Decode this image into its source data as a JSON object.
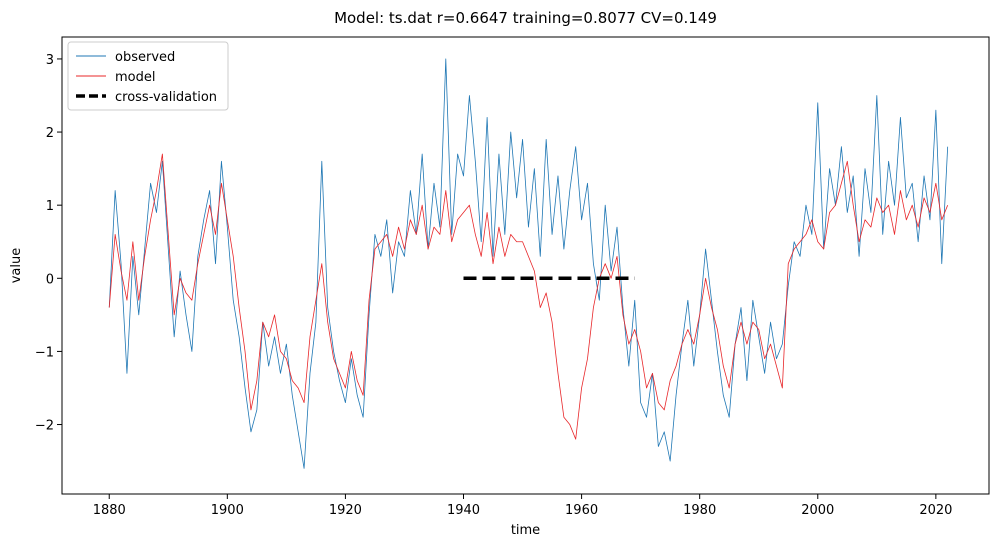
{
  "chart_data": {
    "type": "line",
    "title": "Model: ts.dat  r=0.6647  training=0.8077  CV=0.149",
    "xlabel": "time",
    "ylabel": "value",
    "xlim": [
      1872,
      2029
    ],
    "ylim": [
      -2.95,
      3.3
    ],
    "xticks": [
      1880,
      1900,
      1920,
      1940,
      1960,
      1980,
      2000,
      2020
    ],
    "yticks": [
      -2,
      -1,
      0,
      1,
      2,
      3
    ],
    "ytick_labels": [
      "−2",
      "−1",
      "0",
      "1",
      "2",
      "3"
    ],
    "legend_position": "upper-left",
    "series": [
      {
        "name": "observed",
        "color": "#1f77b4",
        "x": [
          1880,
          1881,
          1882,
          1883,
          1884,
          1885,
          1886,
          1887,
          1888,
          1889,
          1890,
          1891,
          1892,
          1893,
          1894,
          1895,
          1896,
          1897,
          1898,
          1899,
          1900,
          1901,
          1902,
          1903,
          1904,
          1905,
          1906,
          1907,
          1908,
          1909,
          1910,
          1911,
          1912,
          1913,
          1914,
          1915,
          1916,
          1917,
          1918,
          1919,
          1920,
          1921,
          1922,
          1923,
          1924,
          1925,
          1926,
          1927,
          1928,
          1929,
          1930,
          1931,
          1932,
          1933,
          1934,
          1935,
          1936,
          1937,
          1938,
          1939,
          1940,
          1941,
          1942,
          1943,
          1944,
          1945,
          1946,
          1947,
          1948,
          1949,
          1950,
          1951,
          1952,
          1953,
          1954,
          1955,
          1956,
          1957,
          1958,
          1959,
          1960,
          1961,
          1962,
          1963,
          1964,
          1965,
          1966,
          1967,
          1968,
          1969,
          1970,
          1971,
          1972,
          1973,
          1974,
          1975,
          1976,
          1977,
          1978,
          1979,
          1980,
          1981,
          1982,
          1983,
          1984,
          1985,
          1986,
          1987,
          1988,
          1989,
          1990,
          1991,
          1992,
          1993,
          1994,
          1995,
          1996,
          1997,
          1998,
          1999,
          2000,
          2001,
          2002,
          2003,
          2004,
          2005,
          2006,
          2007,
          2008,
          2009,
          2010,
          2011,
          2012,
          2013,
          2014,
          2015,
          2016,
          2017,
          2018,
          2019,
          2020,
          2021,
          2022
        ],
        "values": [
          -0.4,
          1.2,
          0.2,
          -1.3,
          0.3,
          -0.5,
          0.4,
          1.3,
          0.9,
          1.6,
          0.4,
          -0.8,
          0.1,
          -0.5,
          -1.0,
          0.3,
          0.8,
          1.2,
          0.2,
          1.6,
          0.7,
          -0.3,
          -0.8,
          -1.5,
          -2.1,
          -1.8,
          -0.6,
          -1.2,
          -0.8,
          -1.3,
          -0.9,
          -1.6,
          -2.1,
          -2.6,
          -1.3,
          -0.6,
          1.6,
          -0.4,
          -1.0,
          -1.4,
          -1.7,
          -1.1,
          -1.6,
          -1.9,
          -0.5,
          0.6,
          0.3,
          0.8,
          -0.2,
          0.5,
          0.3,
          1.2,
          0.6,
          1.7,
          0.4,
          1.3,
          0.7,
          3.0,
          0.6,
          1.7,
          1.4,
          2.5,
          1.6,
          0.5,
          2.2,
          0.3,
          1.7,
          0.6,
          2.0,
          1.1,
          1.9,
          0.7,
          1.5,
          0.3,
          1.9,
          0.6,
          1.4,
          0.4,
          1.2,
          1.8,
          0.8,
          1.3,
          0.2,
          -0.3,
          1.0,
          0.1,
          0.7,
          -0.4,
          -1.2,
          -0.3,
          -1.7,
          -1.9,
          -1.3,
          -2.3,
          -2.1,
          -2.5,
          -1.6,
          -0.9,
          -0.3,
          -1.2,
          -0.5,
          0.4,
          -0.3,
          -1.0,
          -1.6,
          -1.9,
          -0.9,
          -0.4,
          -1.4,
          -0.3,
          -0.8,
          -1.3,
          -0.6,
          -1.1,
          -0.9,
          -0.1,
          0.5,
          0.3,
          1.0,
          0.6,
          2.4,
          0.4,
          1.5,
          1.0,
          1.8,
          0.9,
          1.4,
          0.3,
          1.5,
          0.9,
          2.5,
          0.6,
          1.6,
          1.0,
          2.2,
          1.1,
          1.3,
          0.5,
          1.4,
          0.8,
          2.3,
          0.2,
          1.8
        ]
      },
      {
        "name": "model",
        "color": "#e8272a",
        "x": [
          1880,
          1881,
          1882,
          1883,
          1884,
          1885,
          1886,
          1887,
          1888,
          1889,
          1890,
          1891,
          1892,
          1893,
          1894,
          1895,
          1896,
          1897,
          1898,
          1899,
          1900,
          1901,
          1902,
          1903,
          1904,
          1905,
          1906,
          1907,
          1908,
          1909,
          1910,
          1911,
          1912,
          1913,
          1914,
          1915,
          1916,
          1917,
          1918,
          1919,
          1920,
          1921,
          1922,
          1923,
          1924,
          1925,
          1926,
          1927,
          1928,
          1929,
          1930,
          1931,
          1932,
          1933,
          1934,
          1935,
          1936,
          1937,
          1938,
          1939,
          1940,
          1941,
          1942,
          1943,
          1944,
          1945,
          1946,
          1947,
          1948,
          1949,
          1950,
          1951,
          1952,
          1953,
          1954,
          1955,
          1956,
          1957,
          1958,
          1959,
          1960,
          1961,
          1962,
          1963,
          1964,
          1965,
          1966,
          1967,
          1968,
          1969,
          1970,
          1971,
          1972,
          1973,
          1974,
          1975,
          1976,
          1977,
          1978,
          1979,
          1980,
          1981,
          1982,
          1983,
          1984,
          1985,
          1986,
          1987,
          1988,
          1989,
          1990,
          1991,
          1992,
          1993,
          1994,
          1995,
          1996,
          1997,
          1998,
          1999,
          2000,
          2001,
          2002,
          2003,
          2004,
          2005,
          2006,
          2007,
          2008,
          2009,
          2010,
          2011,
          2012,
          2013,
          2014,
          2015,
          2016,
          2017,
          2018,
          2019,
          2020,
          2021,
          2022
        ],
        "values": [
          -0.4,
          0.6,
          0.1,
          -0.3,
          0.5,
          -0.3,
          0.3,
          0.8,
          1.2,
          1.7,
          0.6,
          -0.5,
          0.0,
          -0.2,
          -0.3,
          0.2,
          0.6,
          1.0,
          0.6,
          1.3,
          0.8,
          0.3,
          -0.4,
          -1.0,
          -1.8,
          -1.4,
          -0.6,
          -0.8,
          -0.5,
          -1.0,
          -1.1,
          -1.4,
          -1.5,
          -1.7,
          -0.8,
          -0.3,
          0.2,
          -0.6,
          -1.1,
          -1.3,
          -1.5,
          -1.0,
          -1.4,
          -1.6,
          -0.3,
          0.4,
          0.5,
          0.6,
          0.3,
          0.7,
          0.4,
          0.8,
          0.6,
          1.0,
          0.4,
          0.7,
          0.6,
          1.2,
          0.5,
          0.8,
          0.9,
          1.0,
          0.6,
          0.3,
          0.9,
          0.2,
          0.7,
          0.3,
          0.6,
          0.5,
          0.5,
          0.3,
          0.1,
          -0.4,
          -0.2,
          -0.6,
          -1.3,
          -1.9,
          -2.0,
          -2.2,
          -1.5,
          -1.1,
          -0.4,
          0.0,
          0.2,
          0.0,
          0.3,
          -0.5,
          -0.9,
          -0.7,
          -1.0,
          -1.5,
          -1.3,
          -1.7,
          -1.8,
          -1.4,
          -1.2,
          -0.9,
          -0.7,
          -0.9,
          -0.5,
          0.0,
          -0.4,
          -0.7,
          -1.2,
          -1.5,
          -0.9,
          -0.6,
          -0.9,
          -0.6,
          -0.7,
          -1.1,
          -0.9,
          -1.2,
          -1.5,
          0.2,
          0.4,
          0.5,
          0.6,
          0.8,
          0.5,
          0.4,
          0.9,
          1.0,
          1.3,
          1.6,
          1.0,
          0.5,
          0.8,
          0.7,
          1.1,
          0.9,
          1.0,
          0.6,
          1.2,
          0.8,
          1.0,
          0.7,
          1.1,
          0.9,
          1.3,
          0.8,
          1.0
        ]
      },
      {
        "name": "cross-validation",
        "color": "#000000",
        "x": [
          1940,
          1969
        ],
        "values": [
          0,
          0
        ]
      }
    ]
  }
}
